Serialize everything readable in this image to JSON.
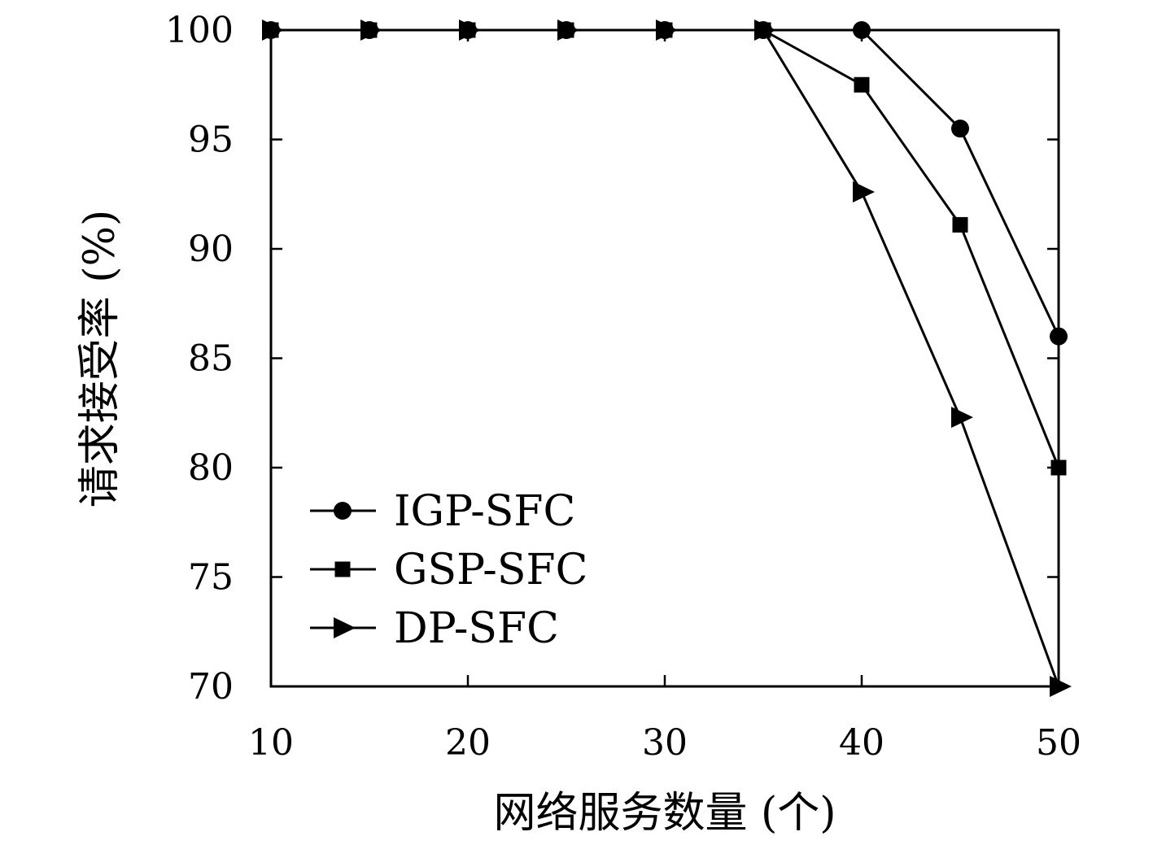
{
  "chart_data": {
    "type": "line",
    "title": "",
    "xlabel": "网络服务数量 (个)",
    "ylabel": "请求接受率 (%)",
    "x": [
      10,
      15,
      20,
      25,
      30,
      35,
      40,
      45,
      50
    ],
    "xlim": [
      10,
      50
    ],
    "ylim": [
      70,
      100
    ],
    "xticks": [
      10,
      20,
      30,
      40,
      50
    ],
    "yticks": [
      70,
      75,
      80,
      85,
      90,
      95,
      100
    ],
    "grid": false,
    "legend_position": "bottom-left",
    "line_color": "#000000",
    "series": [
      {
        "name": "IGP-SFC",
        "marker": "circle",
        "values": [
          100,
          100,
          100,
          100,
          100,
          100,
          100,
          95.5,
          86
        ]
      },
      {
        "name": "GSP-SFC",
        "marker": "square",
        "values": [
          100,
          100,
          100,
          100,
          100,
          100,
          97.5,
          91.1,
          80
        ]
      },
      {
        "name": "DP-SFC",
        "marker": "triangle",
        "values": [
          100,
          100,
          100,
          100,
          100,
          100,
          92.6,
          82.3,
          70
        ]
      }
    ]
  }
}
